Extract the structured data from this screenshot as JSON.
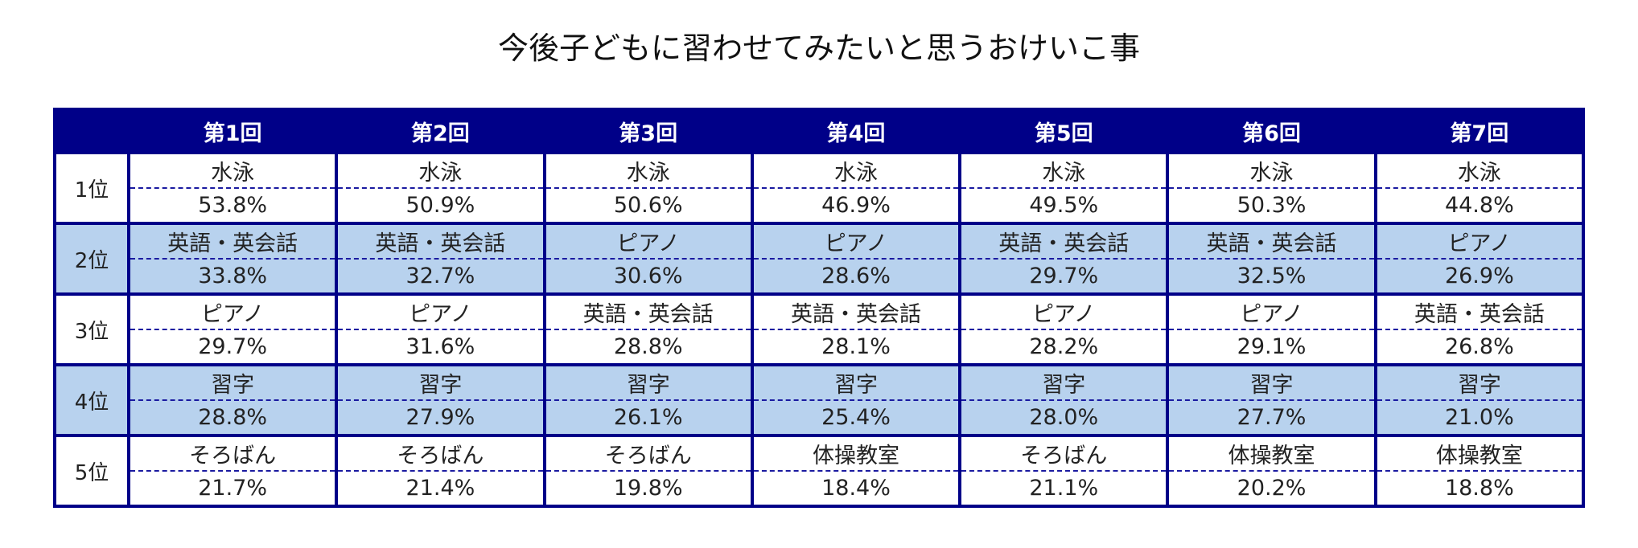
{
  "title": "今後子どもに習わせてみたいと思うおけいこ事",
  "chart_data": {
    "type": "table",
    "title": "今後子どもに習わせてみたいと思うおけいこ事",
    "columns": [
      "",
      "第1回",
      "第2回",
      "第3回",
      "第4回",
      "第5回",
      "第6回",
      "第7回"
    ],
    "rows": [
      {
        "rank": "1位",
        "cells": [
          {
            "activity": "水泳",
            "percent": "53.8%"
          },
          {
            "activity": "水泳",
            "percent": "50.9%"
          },
          {
            "activity": "水泳",
            "percent": "50.6%"
          },
          {
            "activity": "水泳",
            "percent": "46.9%"
          },
          {
            "activity": "水泳",
            "percent": "49.5%"
          },
          {
            "activity": "水泳",
            "percent": "50.3%"
          },
          {
            "activity": "水泳",
            "percent": "44.8%"
          }
        ]
      },
      {
        "rank": "2位",
        "cells": [
          {
            "activity": "英語・英会話",
            "percent": "33.8%"
          },
          {
            "activity": "英語・英会話",
            "percent": "32.7%"
          },
          {
            "activity": "ピアノ",
            "percent": "30.6%"
          },
          {
            "activity": "ピアノ",
            "percent": "28.6%"
          },
          {
            "activity": "英語・英会話",
            "percent": "29.7%"
          },
          {
            "activity": "英語・英会話",
            "percent": "32.5%"
          },
          {
            "activity": "ピアノ",
            "percent": "26.9%"
          }
        ]
      },
      {
        "rank": "3位",
        "cells": [
          {
            "activity": "ピアノ",
            "percent": "29.7%"
          },
          {
            "activity": "ピアノ",
            "percent": "31.6%"
          },
          {
            "activity": "英語・英会話",
            "percent": "28.8%"
          },
          {
            "activity": "英語・英会話",
            "percent": "28.1%"
          },
          {
            "activity": "ピアノ",
            "percent": "28.2%"
          },
          {
            "activity": "ピアノ",
            "percent": "29.1%"
          },
          {
            "activity": "英語・英会話",
            "percent": "26.8%"
          }
        ]
      },
      {
        "rank": "4位",
        "cells": [
          {
            "activity": "習字",
            "percent": "28.8%"
          },
          {
            "activity": "習字",
            "percent": "27.9%"
          },
          {
            "activity": "習字",
            "percent": "26.1%"
          },
          {
            "activity": "習字",
            "percent": "25.4%"
          },
          {
            "activity": "習字",
            "percent": "28.0%"
          },
          {
            "activity": "習字",
            "percent": "27.7%"
          },
          {
            "activity": "習字",
            "percent": "21.0%"
          }
        ]
      },
      {
        "rank": "5位",
        "cells": [
          {
            "activity": "そろばん",
            "percent": "21.7%"
          },
          {
            "activity": "そろばん",
            "percent": "21.4%"
          },
          {
            "activity": "そろばん",
            "percent": "19.8%"
          },
          {
            "activity": "体操教室",
            "percent": "18.4%"
          },
          {
            "activity": "そろばん",
            "percent": "21.1%"
          },
          {
            "activity": "体操教室",
            "percent": "20.2%"
          },
          {
            "activity": "体操教室",
            "percent": "18.8%"
          }
        ]
      }
    ],
    "colors": {
      "header_background": "#000088",
      "header_text": "#ffffff",
      "border": "#000088",
      "shaded_row": "#b8d2ee",
      "plain_row": "#ffffff"
    }
  }
}
